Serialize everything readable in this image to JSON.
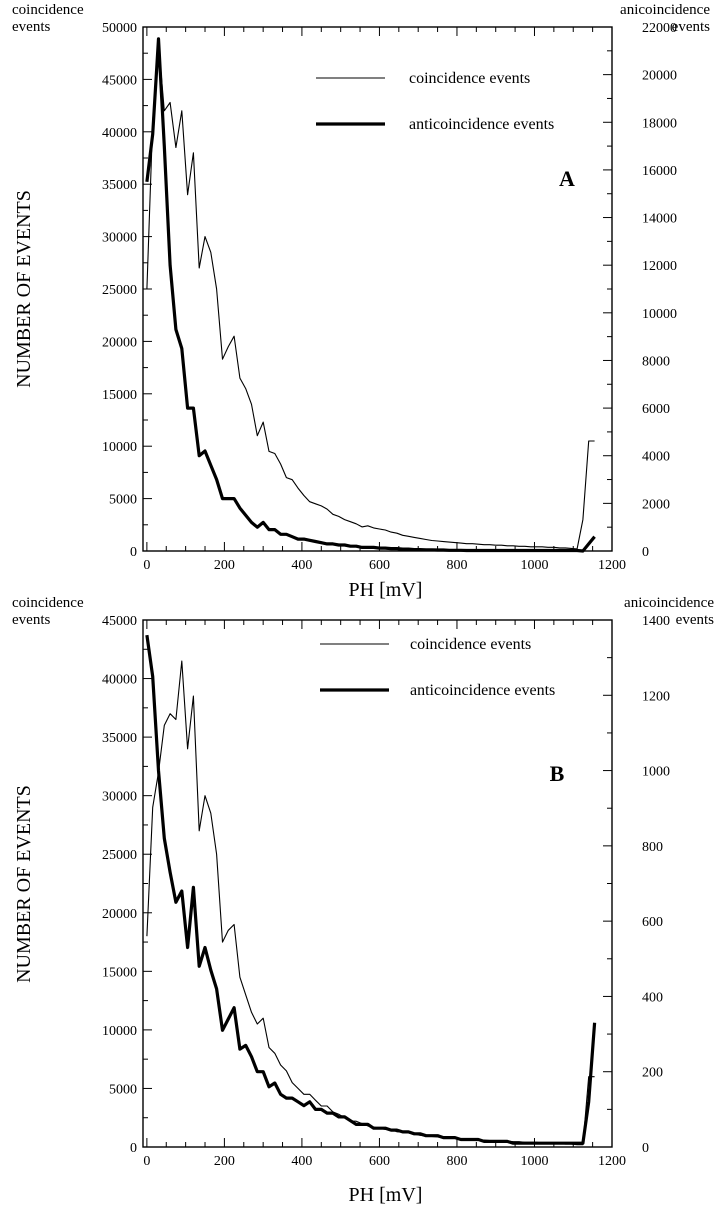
{
  "chart_data": [
    {
      "type": "line",
      "panel_label": "A",
      "xlabel": "PH [mV]",
      "ylabel": "NUMBER OF EVENTS",
      "left_axis_caption": [
        "coincidence",
        "events"
      ],
      "right_axis_caption": [
        "anicoincidence",
        "events"
      ],
      "xlim": [
        -10,
        1200
      ],
      "ylim_left": [
        0,
        50000
      ],
      "ylim_right": [
        0,
        22000
      ],
      "xticks": [
        0,
        200,
        400,
        600,
        800,
        1000,
        1200
      ],
      "yticks_left": [
        0,
        5000,
        10000,
        15000,
        20000,
        25000,
        30000,
        35000,
        40000,
        45000,
        50000
      ],
      "yticks_right": [
        0,
        2000,
        4000,
        6000,
        8000,
        10000,
        12000,
        14000,
        16000,
        18000,
        20000,
        22000
      ],
      "legend_position": "top-right",
      "series": [
        {
          "name": "coincidence events",
          "axis": "left",
          "stroke": "thin",
          "x": [
            0,
            15,
            30,
            45,
            60,
            75,
            90,
            105,
            120,
            135,
            150,
            165,
            180,
            195,
            210,
            225,
            240,
            255,
            270,
            285,
            300,
            315,
            330,
            345,
            360,
            375,
            390,
            405,
            420,
            435,
            450,
            465,
            480,
            495,
            510,
            525,
            540,
            555,
            570,
            585,
            600,
            615,
            630,
            645,
            660,
            675,
            690,
            705,
            720,
            735,
            750,
            765,
            780,
            795,
            810,
            825,
            840,
            855,
            870,
            885,
            900,
            915,
            930,
            945,
            960,
            975,
            990,
            1005,
            1020,
            1035,
            1050,
            1065,
            1080,
            1095,
            1110,
            1125,
            1140,
            1155
          ],
          "values": [
            25000,
            41000,
            48500,
            42000,
            42800,
            38500,
            42000,
            34000,
            38000,
            27000,
            30000,
            28500,
            25000,
            18300,
            19500,
            20500,
            16500,
            15500,
            14000,
            11000,
            12300,
            9500,
            9300,
            8300,
            7000,
            6800,
            6000,
            5300,
            4700,
            4500,
            4300,
            4000,
            3500,
            3300,
            3000,
            2800,
            2600,
            2300,
            2400,
            2200,
            2100,
            2000,
            1800,
            1700,
            1500,
            1400,
            1300,
            1200,
            1100,
            1000,
            950,
            900,
            850,
            800,
            750,
            700,
            700,
            650,
            600,
            600,
            550,
            550,
            500,
            500,
            450,
            450,
            400,
            400,
            400,
            350,
            350,
            300,
            300,
            250,
            200,
            3000,
            10500,
            10500
          ]
        },
        {
          "name": "anticoincidence events",
          "axis": "right",
          "stroke": "thick",
          "x": [
            0,
            15,
            30,
            45,
            60,
            75,
            90,
            105,
            120,
            135,
            150,
            165,
            180,
            195,
            210,
            225,
            240,
            255,
            270,
            285,
            300,
            315,
            330,
            345,
            360,
            375,
            390,
            405,
            420,
            435,
            450,
            465,
            480,
            495,
            510,
            525,
            540,
            555,
            570,
            585,
            600,
            615,
            630,
            645,
            660,
            675,
            690,
            705,
            720,
            735,
            750,
            765,
            780,
            795,
            810,
            825,
            840,
            855,
            870,
            885,
            900,
            915,
            930,
            945,
            960,
            975,
            990,
            1005,
            1020,
            1035,
            1050,
            1065,
            1080,
            1095,
            1110,
            1125,
            1140,
            1155
          ],
          "values": [
            15500,
            17500,
            21500,
            17000,
            12000,
            9300,
            8500,
            6000,
            6000,
            4000,
            4200,
            3600,
            3000,
            2200,
            2200,
            2200,
            1800,
            1500,
            1200,
            1000,
            1200,
            900,
            900,
            700,
            700,
            600,
            500,
            500,
            450,
            400,
            350,
            300,
            300,
            250,
            250,
            200,
            200,
            150,
            150,
            150,
            120,
            120,
            100,
            100,
            80,
            80,
            60,
            60,
            50,
            50,
            40,
            40,
            30,
            30,
            30,
            20,
            20,
            20,
            20,
            20,
            20,
            20,
            20,
            20,
            20,
            20,
            20,
            20,
            20,
            20,
            20,
            20,
            20,
            20,
            20,
            0,
            300,
            600
          ]
        }
      ]
    },
    {
      "type": "line",
      "panel_label": "B",
      "xlabel": "PH [mV]",
      "ylabel": "NUMBER OF EVENTS",
      "left_axis_caption": [
        "coincidence",
        "events"
      ],
      "right_axis_caption": [
        "anicoincidence",
        "events"
      ],
      "xlim": [
        -10,
        1200
      ],
      "ylim_left": [
        0,
        45000
      ],
      "ylim_right": [
        0,
        1400
      ],
      "xticks": [
        0,
        200,
        400,
        600,
        800,
        1000,
        1200
      ],
      "yticks_left": [
        0,
        5000,
        10000,
        15000,
        20000,
        25000,
        30000,
        35000,
        40000,
        45000
      ],
      "yticks_right": [
        0,
        200,
        400,
        600,
        800,
        1000,
        1200,
        1400
      ],
      "legend_position": "top-right",
      "series": [
        {
          "name": "coincidence events",
          "axis": "left",
          "stroke": "thin",
          "x": [
            0,
            15,
            30,
            45,
            60,
            75,
            90,
            105,
            120,
            135,
            150,
            165,
            180,
            195,
            210,
            225,
            240,
            255,
            270,
            285,
            300,
            315,
            330,
            345,
            360,
            375,
            390,
            405,
            420,
            435,
            450,
            465,
            480,
            495,
            510,
            525,
            540,
            555,
            570,
            585,
            600,
            615,
            630,
            645,
            660,
            675,
            690,
            705,
            720,
            735,
            750,
            765,
            780,
            795,
            810,
            825,
            840,
            855,
            870,
            885,
            900,
            915,
            930,
            945,
            960,
            975,
            990,
            1005,
            1020,
            1035,
            1050,
            1065,
            1080,
            1095,
            1110,
            1125,
            1140,
            1155
          ],
          "values": [
            18000,
            29000,
            32000,
            36000,
            37000,
            36500,
            41500,
            34000,
            38500,
            27000,
            30000,
            28500,
            25000,
            17500,
            18500,
            19000,
            14500,
            13000,
            11500,
            10500,
            11000,
            8500,
            8000,
            7000,
            6500,
            5500,
            5000,
            4500,
            4500,
            4000,
            3500,
            3500,
            3000,
            2800,
            2500,
            2200,
            2200,
            2000,
            1800,
            1700,
            1600,
            1500,
            1500,
            1300,
            1300,
            1200,
            1100,
            1000,
            950,
            900,
            850,
            800,
            800,
            750,
            700,
            700,
            650,
            600,
            600,
            550,
            550,
            500,
            500,
            450,
            450,
            400,
            400,
            400,
            350,
            350,
            300,
            300,
            250,
            250,
            200,
            200,
            6000,
            6000
          ]
        },
        {
          "name": "anticoincidence events",
          "axis": "right",
          "stroke": "thick",
          "x": [
            0,
            15,
            30,
            45,
            60,
            75,
            90,
            105,
            120,
            135,
            150,
            165,
            180,
            195,
            210,
            225,
            240,
            255,
            270,
            285,
            300,
            315,
            330,
            345,
            360,
            375,
            390,
            405,
            420,
            435,
            450,
            465,
            480,
            495,
            510,
            525,
            540,
            555,
            570,
            585,
            600,
            615,
            630,
            645,
            660,
            675,
            690,
            705,
            720,
            735,
            750,
            765,
            780,
            795,
            810,
            825,
            840,
            855,
            870,
            885,
            900,
            915,
            930,
            945,
            960,
            975,
            990,
            1005,
            1020,
            1035,
            1050,
            1065,
            1080,
            1095,
            1110,
            1125,
            1140,
            1155
          ],
          "values": [
            1360,
            1250,
            1000,
            820,
            730,
            650,
            680,
            530,
            690,
            480,
            530,
            470,
            420,
            310,
            340,
            370,
            260,
            270,
            240,
            200,
            200,
            160,
            170,
            140,
            130,
            130,
            120,
            110,
            120,
            100,
            100,
            90,
            90,
            80,
            80,
            70,
            60,
            60,
            60,
            50,
            50,
            50,
            45,
            45,
            40,
            40,
            35,
            35,
            30,
            30,
            30,
            25,
            25,
            25,
            20,
            20,
            20,
            20,
            15,
            15,
            15,
            15,
            15,
            10,
            10,
            10,
            10,
            10,
            10,
            10,
            10,
            10,
            10,
            10,
            10,
            10,
            120,
            330
          ]
        }
      ]
    }
  ]
}
